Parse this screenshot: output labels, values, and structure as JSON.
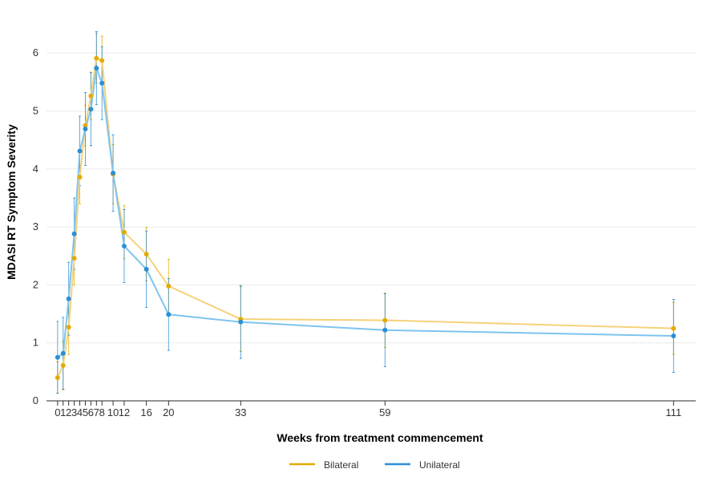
{
  "chart_data": {
    "type": "line",
    "xlabel": "Weeks from treatment commencement",
    "ylabel": "MDASI RT Symptom Severity",
    "xlim": [
      -2,
      115
    ],
    "ylim": [
      0,
      6.5
    ],
    "x_ticks": [
      0,
      1,
      2,
      3,
      4,
      5,
      6,
      7,
      8,
      10,
      12,
      16,
      20,
      33,
      59,
      111
    ],
    "x_tick_labels": [
      "0",
      "1",
      "2",
      "3",
      "4",
      "5",
      "6",
      "7",
      "8",
      "10",
      "12",
      "16",
      "20",
      "33",
      "59",
      "111"
    ],
    "y_ticks": [
      0,
      1,
      2,
      3,
      4,
      5,
      6
    ],
    "y_tick_labels": [
      "0",
      "1",
      "2",
      "3",
      "4",
      "5",
      "6"
    ],
    "grid": true,
    "legend_position": "bottom",
    "colors": {
      "Bilateral": "#E6AB02",
      "Unilateral": "#2C8FD6"
    },
    "line_colors": {
      "Bilateral": "#F5D27A",
      "Unilateral": "#7FC4EE"
    },
    "series": [
      {
        "name": "Bilateral",
        "x": [
          0,
          1,
          2,
          3,
          4,
          5,
          6,
          7,
          8,
          10,
          12,
          16,
          20,
          33,
          59,
          111
        ],
        "y": [
          0.4,
          0.61,
          1.27,
          2.46,
          3.86,
          4.75,
          5.26,
          5.91,
          5.87,
          3.91,
          2.91,
          2.53,
          1.98,
          1.41,
          1.39,
          1.25
        ],
        "lower": [
          0.13,
          0.19,
          0.8,
          2.0,
          3.4,
          4.4,
          4.85,
          5.48,
          5.45,
          3.4,
          2.45,
          2.07,
          1.52,
          0.85,
          0.92,
          0.8
        ],
        "upper": [
          0.67,
          1.03,
          1.74,
          2.92,
          4.32,
          5.1,
          5.67,
          6.34,
          6.29,
          4.42,
          3.37,
          2.99,
          2.44,
          1.97,
          1.86,
          1.7
        ]
      },
      {
        "name": "Unilateral",
        "x": [
          0,
          1,
          2,
          3,
          4,
          5,
          6,
          7,
          8,
          10,
          12,
          16,
          20,
          33,
          59,
          111
        ],
        "y": [
          0.75,
          0.82,
          1.76,
          2.88,
          4.31,
          4.69,
          5.03,
          5.74,
          5.48,
          3.93,
          2.67,
          2.27,
          1.49,
          1.36,
          1.22,
          1.12
        ],
        "lower": [
          0.13,
          0.2,
          1.13,
          2.26,
          3.71,
          4.06,
          4.4,
          5.11,
          4.85,
          3.27,
          2.04,
          1.61,
          0.87,
          0.73,
          0.59,
          0.49
        ],
        "upper": [
          1.37,
          1.44,
          2.39,
          3.5,
          4.91,
          5.32,
          5.66,
          6.37,
          6.11,
          4.59,
          3.3,
          2.93,
          2.11,
          1.99,
          1.85,
          1.75
        ]
      }
    ]
  }
}
